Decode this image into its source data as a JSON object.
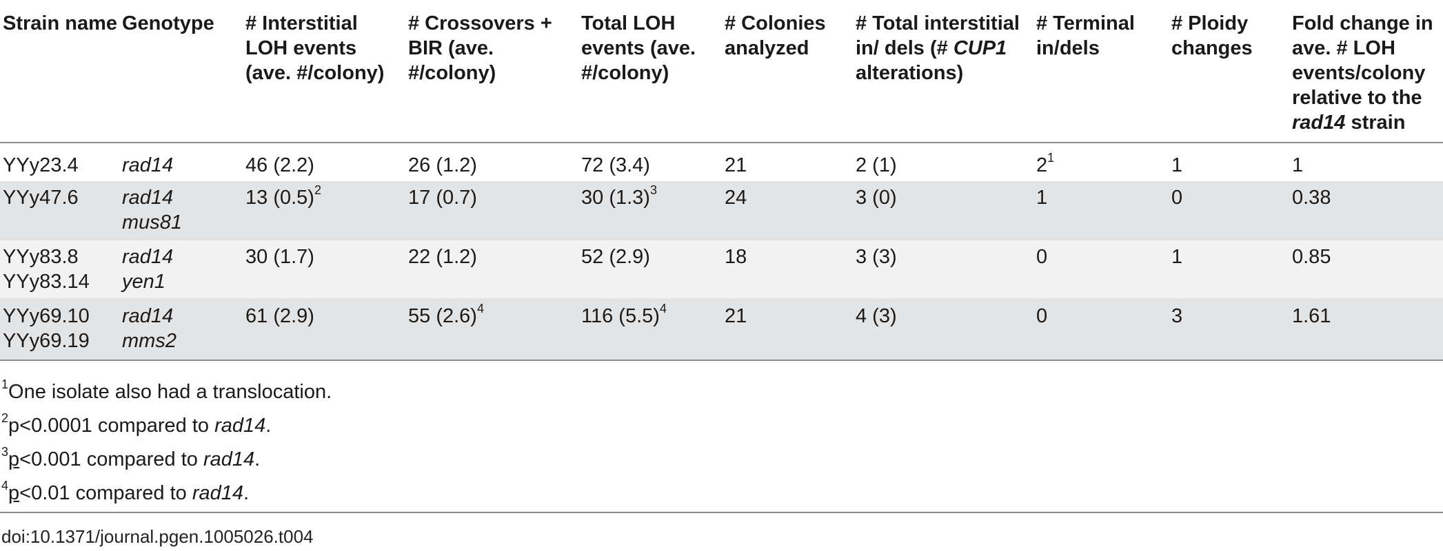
{
  "headers": {
    "strain": "Strain name",
    "genotype": "Genotype",
    "interstitial": "# Interstitial LOH events (ave. #/colony)",
    "crossovers": "# Crossovers + BIR (ave. #/colony)",
    "total_loh": "Total LOH events (ave. #/colony)",
    "colonies": "# Colonies analyzed",
    "indels_pre": "# Total interstitial in/ dels (# ",
    "indels_ital": "CUP1",
    "indels_post": " alterations)",
    "terminal": "# Terminal in/dels",
    "ploidy": "# Ploidy changes",
    "fold_pre": "Fold change in ave. # LOH events/colony relative to the ",
    "fold_ital": "rad14",
    "fold_post": " strain"
  },
  "rows": [
    {
      "strain_1": "YYy23.4",
      "strain_2": "",
      "geno_1": "rad14",
      "geno_2": "",
      "interstitial": "46 (2.2)",
      "interstitial_sup": "",
      "crossovers": "26 (1.2)",
      "crossovers_sup": "",
      "total": "72 (3.4)",
      "total_sup": "",
      "colonies": "21",
      "indels": "2 (1)",
      "terminal": "2",
      "terminal_sup": "1",
      "ploidy": "1",
      "fold": "1"
    },
    {
      "strain_1": "YYy47.6",
      "strain_2": "",
      "geno_1": "rad14",
      "geno_2": "mus81",
      "interstitial": "13 (0.5)",
      "interstitial_sup": "2",
      "crossovers": "17 (0.7)",
      "crossovers_sup": "",
      "total": "30 (1.3)",
      "total_sup": "3",
      "colonies": "24",
      "indels": "3 (0)",
      "terminal": "1",
      "terminal_sup": "",
      "ploidy": "0",
      "fold": "0.38"
    },
    {
      "strain_1": "YYy83.8",
      "strain_2": "YYy83.14",
      "geno_1": "rad14",
      "geno_2": "yen1",
      "interstitial": "30 (1.7)",
      "interstitial_sup": "",
      "crossovers": "22 (1.2)",
      "crossovers_sup": "",
      "total": "52 (2.9)",
      "total_sup": "",
      "colonies": "18",
      "indels": "3 (3)",
      "terminal": "0",
      "terminal_sup": "",
      "ploidy": "1",
      "fold": "0.85"
    },
    {
      "strain_1": "YYy69.10",
      "strain_2": "YYy69.19",
      "geno_1": "rad14",
      "geno_2": "mms2",
      "interstitial": "61 (2.9)",
      "interstitial_sup": "",
      "crossovers": "55 (2.6)",
      "crossovers_sup": "4",
      "total": "116 (5.5)",
      "total_sup": "4",
      "colonies": "21",
      "indels": "4 (3)",
      "terminal": "0",
      "terminal_sup": "",
      "ploidy": "3",
      "fold": "1.61"
    }
  ],
  "footnotes": [
    {
      "mark": "1",
      "p": "",
      "text": "One isolate also had a translocation.",
      "ital": "",
      "end": ""
    },
    {
      "mark": "2",
      "p": "",
      "text": "p<0.0001 compared to ",
      "ital": "rad14",
      "end": "."
    },
    {
      "mark": "3",
      "p": "p",
      "text": "<0.001 compared to ",
      "ital": "rad14",
      "end": "."
    },
    {
      "mark": "4",
      "p": "p",
      "text": "<0.01 compared to ",
      "ital": "rad14",
      "end": "."
    }
  ],
  "doi": "doi:10.1371/journal.pgen.1005026.t004"
}
